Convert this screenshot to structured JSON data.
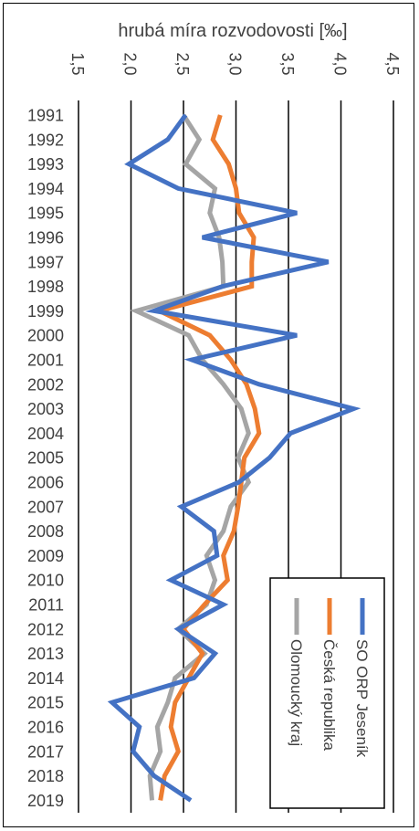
{
  "chart_data": {
    "type": "line",
    "title": "hrubá míra rozvodovosti [‰]",
    "orientation": "rotated-90-clockwise",
    "xlabel": "",
    "ylabel": "",
    "value_axis": {
      "range": [
        1.5,
        4.5
      ],
      "ticks": [
        1.5,
        2.0,
        2.5,
        3.0,
        3.5,
        4.0,
        4.5
      ],
      "tick_labels": [
        "1,5",
        "2,0",
        "2,5",
        "3,0",
        "3,5",
        "4,0",
        "4,5"
      ],
      "grid": true
    },
    "categories": [
      "1991",
      "1992",
      "1993",
      "1994",
      "1995",
      "1996",
      "1997",
      "1998",
      "1999",
      "2000",
      "2001",
      "2002",
      "2003",
      "2004",
      "2005",
      "2006",
      "2007",
      "2008",
      "2009",
      "2010",
      "2011",
      "2012",
      "2013",
      "2014",
      "2015",
      "2016",
      "2017",
      "2018",
      "2019"
    ],
    "series": [
      {
        "name": "SO ORP Jeseník",
        "color": "#4472C4",
        "values": [
          2.52,
          2.35,
          1.98,
          2.45,
          3.58,
          2.68,
          3.88,
          2.87,
          2.22,
          3.58,
          2.58,
          3.22,
          4.12,
          3.52,
          3.32,
          3.03,
          2.48,
          2.79,
          2.82,
          2.38,
          2.88,
          2.45,
          2.8,
          2.6,
          1.82,
          2.08,
          2.02,
          2.22,
          2.57
        ]
      },
      {
        "name": "Česká republika",
        "color": "#ED7D31",
        "values": [
          2.85,
          2.78,
          2.93,
          3.0,
          3.03,
          3.17,
          3.15,
          3.15,
          2.27,
          2.75,
          2.95,
          3.1,
          3.18,
          3.22,
          3.08,
          3.05,
          3.02,
          2.98,
          2.88,
          2.92,
          2.7,
          2.5,
          2.68,
          2.55,
          2.42,
          2.38,
          2.45,
          2.32,
          2.28
        ]
      },
      {
        "name": "Olomoucký kraj",
        "color": "#A5A5A5",
        "values": [
          2.5,
          2.65,
          2.52,
          2.8,
          2.75,
          2.84,
          2.87,
          2.88,
          2.05,
          2.55,
          2.68,
          2.88,
          3.05,
          3.12,
          3.02,
          3.12,
          2.95,
          2.88,
          2.72,
          2.8,
          2.72,
          2.45,
          2.7,
          2.42,
          2.35,
          2.25,
          2.28,
          2.18,
          2.2
        ]
      }
    ],
    "legend": {
      "placement": "bottom-right",
      "entries": [
        "SO ORP Jeseník",
        "Česká republika",
        "Olomoucký kraj"
      ]
    }
  }
}
